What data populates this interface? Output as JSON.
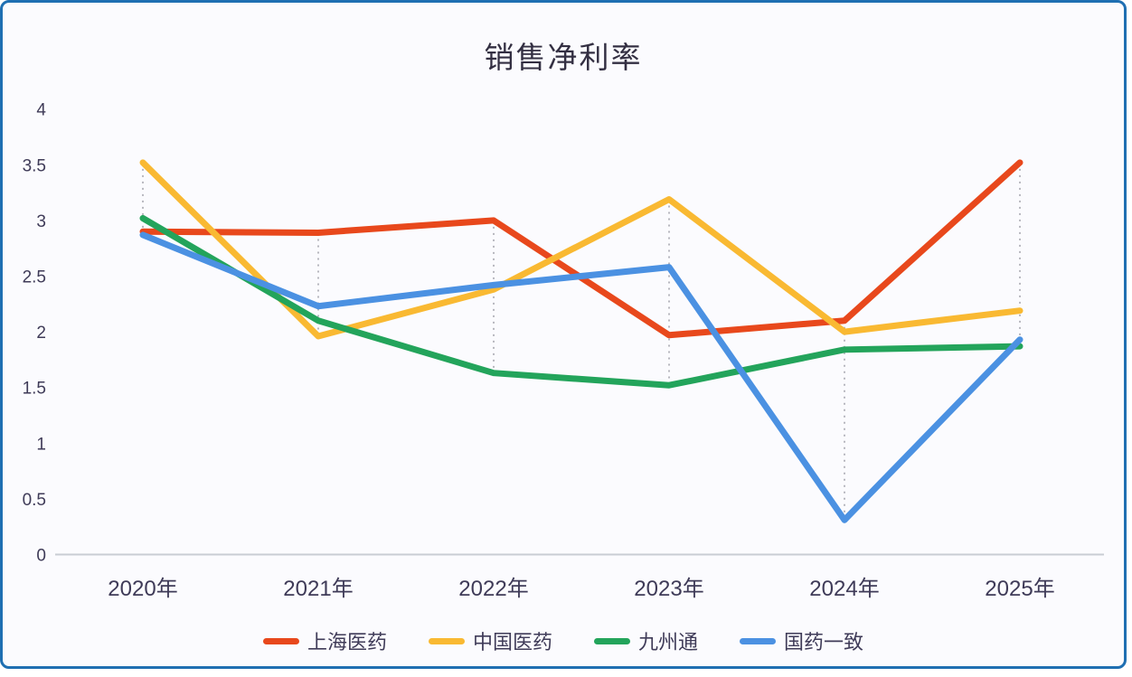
{
  "chart": {
    "title": "销售净利率"
  },
  "chart_data": {
    "type": "line",
    "title": "销售净利率",
    "categories": [
      "2020年",
      "2021年",
      "2022年",
      "2023年",
      "2024年",
      "2025年"
    ],
    "series": [
      {
        "id": "shanghai-pharma",
        "name": "上海医药",
        "color": "#E8481C",
        "values": [
          2.9,
          2.89,
          3.0,
          1.97,
          2.1,
          3.52
        ]
      },
      {
        "id": "china-pharma",
        "name": "中国医药",
        "color": "#F9B932",
        "values": [
          3.52,
          1.96,
          2.38,
          3.19,
          2.0,
          2.19
        ]
      },
      {
        "id": "jointown",
        "name": "九州通",
        "color": "#23A45B",
        "values": [
          3.02,
          2.1,
          1.63,
          1.52,
          1.84,
          1.87
        ]
      },
      {
        "id": "sinopharm-accord",
        "name": "国药一致",
        "color": "#4B91E2",
        "values": [
          2.87,
          2.23,
          2.42,
          2.58,
          0.31,
          1.93
        ]
      }
    ],
    "y_ticks": [
      "0",
      "0.5",
      "1",
      "1.5",
      "2",
      "2.5",
      "3",
      "3.5",
      "4"
    ],
    "ylim": [
      0,
      4
    ],
    "grid": false,
    "guide_lines": "vertical dashed segment from min to max series value at each category",
    "legend_position": "bottom"
  },
  "colors": {
    "card_border": "#1F6FB2",
    "background": "#FBFBFE",
    "axis_line": "#C9CDD4",
    "dashed_guide": "#A6A6AF",
    "tick_text": "#3F3B58",
    "title_text": "#332F42"
  }
}
